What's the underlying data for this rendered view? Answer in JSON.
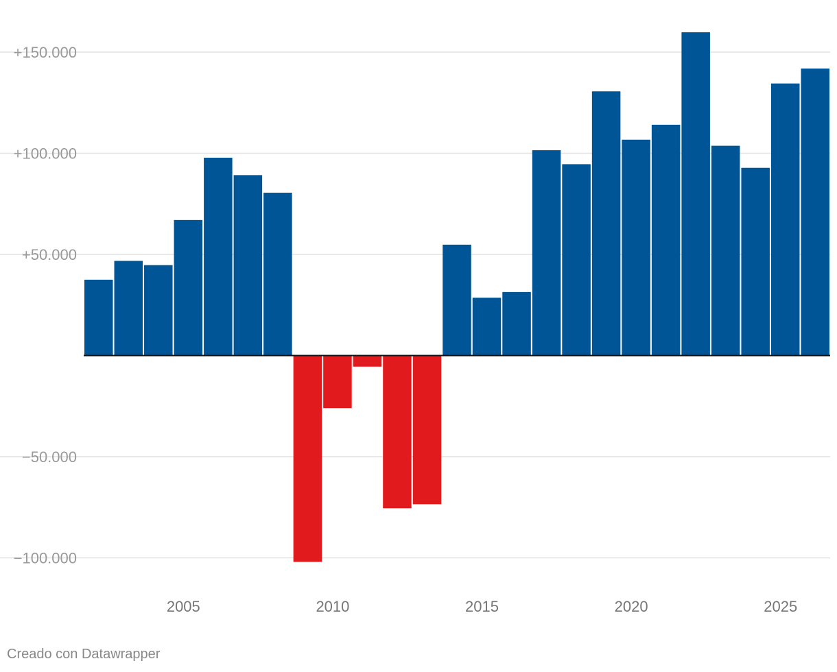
{
  "chart_data": {
    "type": "bar",
    "title": "",
    "xlabel": "",
    "ylabel": "",
    "x": [
      2002,
      2003,
      2004,
      2005,
      2006,
      2007,
      2008,
      2009,
      2010,
      2011,
      2012,
      2013,
      2014,
      2015,
      2016,
      2017,
      2018,
      2019,
      2020,
      2021,
      2022,
      2023,
      2024,
      2025,
      2026
    ],
    "values": [
      37500,
      46800,
      44700,
      67000,
      97800,
      89200,
      80500,
      -102000,
      -26000,
      -5500,
      -75500,
      -73500,
      54800,
      28600,
      31400,
      101500,
      94600,
      130600,
      106700,
      114100,
      159800,
      103700,
      92800,
      134500,
      141900
    ],
    "ylim": [
      -110000,
      170000
    ],
    "y_ticks": [
      150000,
      100000,
      50000,
      -50000,
      -100000
    ],
    "y_tick_labels": [
      "+150.000",
      "+100.000",
      "+50.000",
      "−50.000",
      "−100.000"
    ],
    "x_ticks": [
      2005,
      2010,
      2015,
      2020,
      2025
    ],
    "x_tick_labels": [
      "2005",
      "2010",
      "2015",
      "2020",
      "2025"
    ],
    "positive_color": "#005596",
    "negative_color": "#e11b1d",
    "gridlines": true,
    "legend": "none"
  },
  "footer": {
    "credit": "Creado con Datawrapper"
  }
}
